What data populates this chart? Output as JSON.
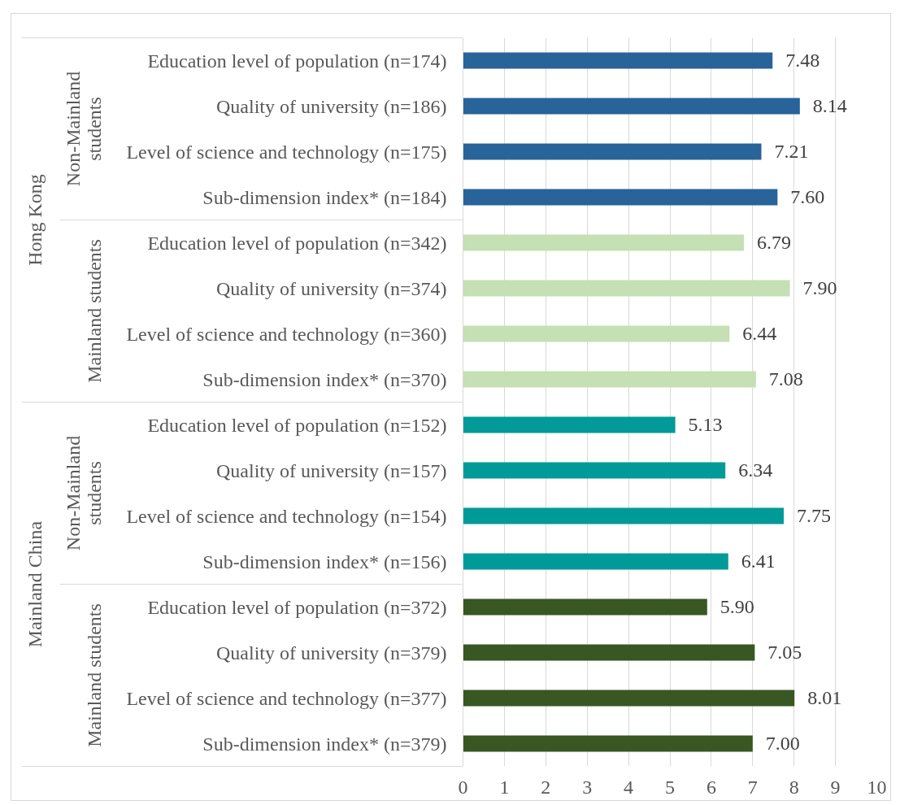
{
  "chart_data": {
    "type": "bar",
    "orientation": "horizontal",
    "categories": [
      "Education level of population (n=174)",
      "Quality of university (n=186)",
      "Level of science and technology (n=175)",
      "Sub-dimension index* (n=184)",
      "Education level of population (n=342)",
      "Quality of university (n=374)",
      "Level of science and technology (n=360)",
      "Sub-dimension index* (n=370)",
      "Education level of population (n=152)",
      "Quality of university (n=157)",
      "Level of science and technology (n=154)",
      "Sub-dimension index* (n=156)",
      "Education level of population (n=372)",
      "Quality of university (n=379)",
      "Level of science and technology (n=377)",
      "Sub-dimension index* (n=379)"
    ],
    "series": [
      {
        "color": "#28639a",
        "values": [
          7.48,
          8.14,
          7.21,
          7.6,
          null,
          null,
          null,
          null,
          null,
          null,
          null,
          null,
          null,
          null,
          null,
          null
        ],
        "value_labels": [
          "7.48",
          "8.14",
          "7.21",
          "7.60",
          null,
          null,
          null,
          null,
          null,
          null,
          null,
          null,
          null,
          null,
          null,
          null
        ]
      },
      {
        "color": "#c5e0b4",
        "values": [
          null,
          null,
          null,
          null,
          6.79,
          7.9,
          6.44,
          7.08,
          null,
          null,
          null,
          null,
          null,
          null,
          null,
          null
        ],
        "value_labels": [
          null,
          null,
          null,
          null,
          "6.79",
          "7.90",
          "6.44",
          "7.08",
          null,
          null,
          null,
          null,
          null,
          null,
          null,
          null
        ]
      },
      {
        "color": "#009a98",
        "values": [
          null,
          null,
          null,
          null,
          null,
          null,
          null,
          null,
          5.13,
          6.34,
          7.75,
          6.41,
          null,
          null,
          null,
          null
        ],
        "value_labels": [
          null,
          null,
          null,
          null,
          null,
          null,
          null,
          null,
          "5.13",
          "6.34",
          "7.75",
          "6.41",
          null,
          null,
          null,
          null
        ]
      },
      {
        "color": "#385723",
        "values": [
          null,
          null,
          null,
          null,
          null,
          null,
          null,
          null,
          null,
          null,
          null,
          null,
          5.9,
          7.05,
          8.01,
          7.0
        ],
        "value_labels": [
          null,
          null,
          null,
          null,
          null,
          null,
          null,
          null,
          null,
          null,
          null,
          null,
          "5.90",
          "7.05",
          "8.01",
          "7.00"
        ]
      }
    ],
    "annotations": [
      "Non-Mainland students",
      "Mainland students",
      "Non-Mainland students",
      "Mainland students",
      "Hong Kong",
      "Mainland China"
    ],
    "xlim": [
      0,
      10
    ],
    "xticks": [
      0,
      1,
      2,
      3,
      4,
      5,
      6,
      7,
      8,
      9,
      10
    ],
    "grid": "x"
  }
}
